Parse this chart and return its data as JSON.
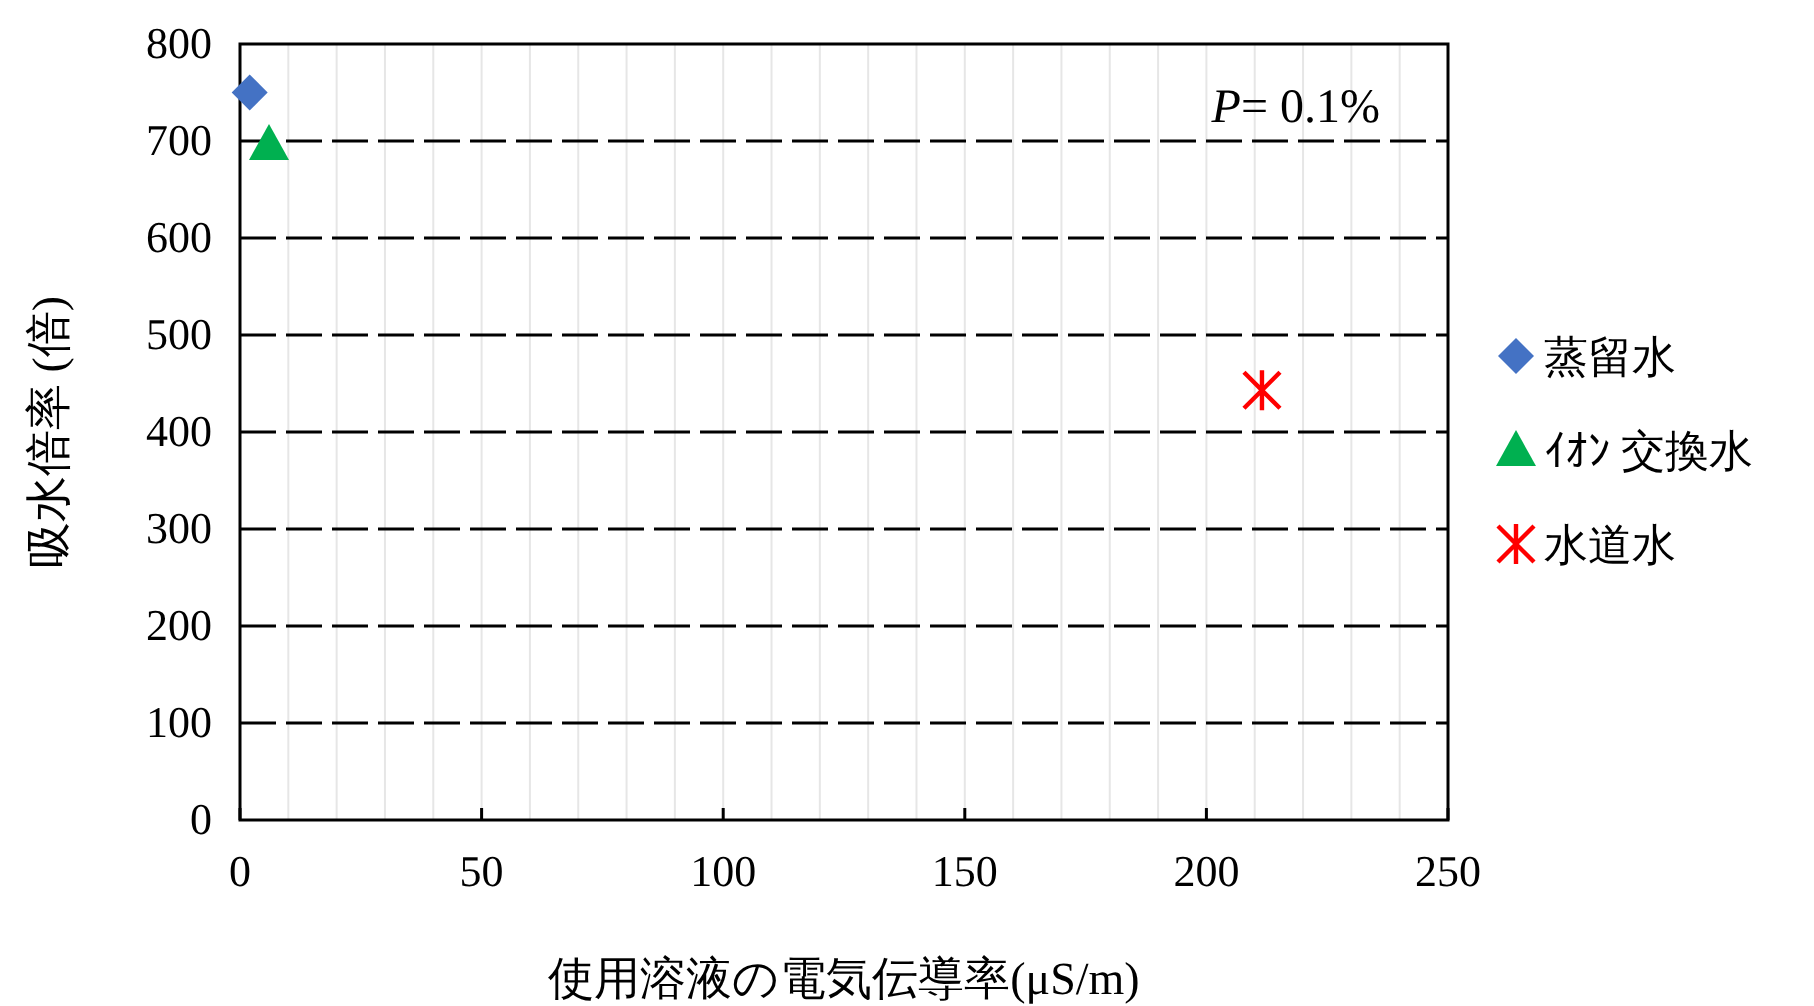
{
  "chart_data": {
    "type": "scatter",
    "xlabel": "使用溶液の電気伝導率(μS/m)",
    "ylabel": "吸水倍率 (倍)",
    "xlim": [
      0,
      250
    ],
    "ylim": [
      0,
      800
    ],
    "xticks": [
      0,
      50,
      100,
      150,
      200,
      250
    ],
    "yticks": [
      0,
      100,
      200,
      300,
      400,
      500,
      600,
      700,
      800
    ],
    "grid": true,
    "legend": "right",
    "series": [
      {
        "name": "蒸留水",
        "color": "#4472c4",
        "marker": "diamond",
        "x": [
          2
        ],
        "values": [
          750
        ]
      },
      {
        "name": "ｲｵﾝ 交換水",
        "color": "#00b050",
        "marker": "triangle",
        "x": [
          6
        ],
        "values": [
          697
        ]
      },
      {
        "name": "水道水",
        "color": "#ff0000",
        "marker": "cross",
        "x": [
          211.5
        ],
        "values": [
          443
        ]
      }
    ],
    "annotations": [
      "P= 0.1%"
    ]
  }
}
